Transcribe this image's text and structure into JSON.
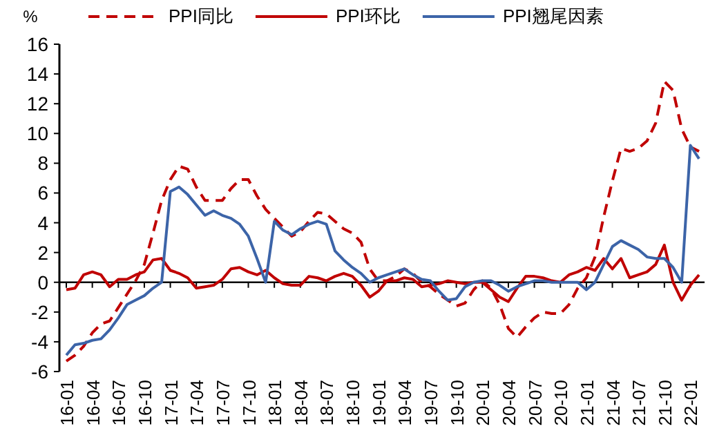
{
  "chart_data": {
    "type": "line",
    "ylabel": "%",
    "legend": "top",
    "ylim": [
      -6,
      16
    ],
    "yticks": [
      -6,
      -4,
      -2,
      0,
      2,
      4,
      6,
      8,
      10,
      12,
      14,
      16
    ],
    "categories": [
      "16-01",
      null,
      null,
      "16-04",
      null,
      null,
      "16-07",
      null,
      null,
      "16-10",
      null,
      null,
      "17-01",
      null,
      null,
      "17-04",
      null,
      null,
      "17-07",
      null,
      null,
      "17-10",
      null,
      null,
      "18-01",
      null,
      null,
      "18-04",
      null,
      null,
      "18-07",
      null,
      null,
      "18-10",
      null,
      null,
      "19-01",
      null,
      null,
      "19-04",
      null,
      null,
      "19-07",
      null,
      null,
      "19-10",
      null,
      null,
      "20-01",
      null,
      null,
      "20-04",
      null,
      null,
      "20-07",
      null,
      null,
      "20-10",
      null,
      null,
      "21-01",
      null,
      null,
      "21-04",
      null,
      null,
      "21-07",
      null,
      null,
      "21-10",
      null,
      null,
      "22-01",
      null
    ],
    "series": [
      {
        "name": "PPI同比",
        "color": "#c00000",
        "line_style": "dashed",
        "values": [
          -5.3,
          -4.9,
          -4.3,
          -3.4,
          -2.8,
          -2.6,
          -1.7,
          -0.8,
          0.1,
          1.2,
          3.3,
          5.5,
          6.9,
          7.8,
          7.6,
          6.4,
          5.5,
          5.5,
          5.5,
          6.3,
          6.9,
          6.9,
          5.8,
          4.9,
          4.3,
          3.7,
          3.1,
          3.4,
          4.1,
          4.7,
          4.6,
          4.1,
          3.6,
          3.3,
          2.7,
          0.9,
          0.1,
          0.1,
          0.4,
          0.9,
          0.6,
          0.0,
          -0.3,
          -0.8,
          -1.2,
          -1.6,
          -1.4,
          -0.5,
          0.1,
          -0.4,
          -1.5,
          -3.1,
          -3.7,
          -3.0,
          -2.4,
          -2.0,
          -2.1,
          -2.1,
          -1.5,
          -0.4,
          0.3,
          1.7,
          4.4,
          6.8,
          9.0,
          8.8,
          9.0,
          9.5,
          10.7,
          13.5,
          12.9,
          10.3,
          9.1,
          8.8
        ]
      },
      {
        "name": "PPI环比",
        "color": "#c00000",
        "line_style": "solid",
        "values": [
          -0.5,
          -0.4,
          0.5,
          0.7,
          0.5,
          -0.3,
          0.2,
          0.2,
          0.5,
          0.7,
          1.5,
          1.6,
          0.8,
          0.6,
          0.3,
          -0.4,
          -0.3,
          -0.2,
          0.2,
          0.9,
          1.0,
          0.7,
          0.5,
          0.8,
          0.3,
          -0.1,
          -0.2,
          -0.2,
          0.4,
          0.3,
          0.1,
          0.4,
          0.6,
          0.4,
          -0.2,
          -1.0,
          -0.6,
          0.1,
          0.1,
          0.3,
          0.2,
          -0.3,
          -0.2,
          -0.1,
          0.1,
          0.0,
          -0.1,
          0.0,
          0.0,
          -0.5,
          -1.0,
          -1.3,
          -0.4,
          0.4,
          0.4,
          0.3,
          0.1,
          0.0,
          0.5,
          0.7,
          1.0,
          0.8,
          1.6,
          0.9,
          1.6,
          0.3,
          0.5,
          0.7,
          1.2,
          2.5,
          0.0,
          -1.2,
          -0.2,
          0.5
        ]
      },
      {
        "name": "PPI翘尾因素",
        "color": "#3c64a8",
        "line_style": "solid",
        "values": [
          -4.9,
          -4.2,
          -4.1,
          -3.9,
          -3.8,
          -3.2,
          -2.4,
          -1.5,
          -1.2,
          -0.9,
          -0.4,
          0.0,
          6.1,
          6.4,
          5.9,
          5.2,
          4.5,
          4.8,
          4.5,
          4.3,
          3.9,
          3.1,
          1.6,
          0.0,
          4.1,
          3.5,
          3.2,
          3.6,
          3.9,
          4.1,
          3.9,
          2.1,
          1.5,
          1.0,
          0.6,
          0.0,
          0.3,
          0.5,
          0.7,
          0.9,
          0.5,
          0.2,
          0.1,
          -0.6,
          -1.2,
          -1.1,
          -0.3,
          0.0,
          0.1,
          0.1,
          -0.2,
          -0.6,
          -0.3,
          -0.1,
          0.1,
          0.1,
          0.0,
          0.0,
          0.0,
          0.0,
          -0.5,
          0.0,
          1.2,
          2.4,
          2.8,
          2.5,
          2.2,
          1.7,
          1.6,
          1.6,
          1.0,
          0.0,
          9.2,
          8.3
        ]
      }
    ]
  }
}
